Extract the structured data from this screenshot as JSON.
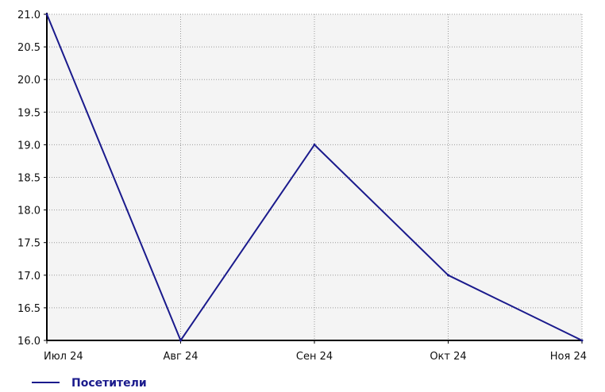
{
  "chart_data": {
    "type": "line",
    "categories": [
      "Июл 24",
      "Авг 24",
      "Сен 24",
      "Окт 24",
      "Ноя 24"
    ],
    "series": [
      {
        "name": "Посетители",
        "values": [
          21.0,
          16.0,
          19.0,
          17.0,
          16.0
        ],
        "color": "#1a1a8c"
      }
    ],
    "ylim": [
      16.0,
      21.0
    ],
    "yticks": [
      "16.0",
      "16.5",
      "17.0",
      "17.5",
      "18.0",
      "18.5",
      "19.0",
      "19.5",
      "20.0",
      "20.5",
      "21.0"
    ],
    "grid": true,
    "legend": "bottom-left",
    "plot_background": "#f4f4f4",
    "grid_color": "#9a9a9a",
    "axis_color": "#000000"
  }
}
